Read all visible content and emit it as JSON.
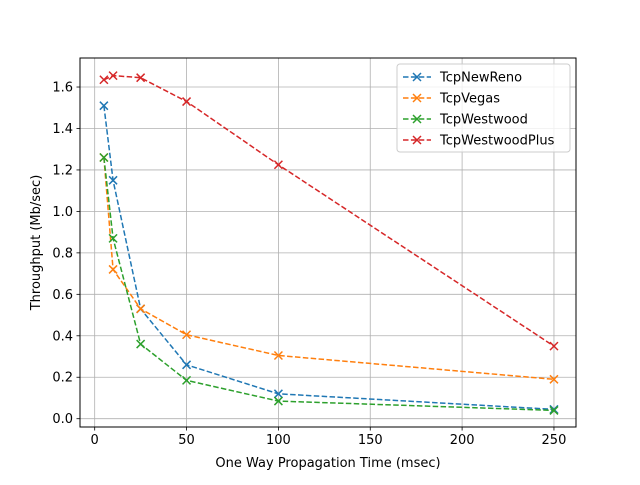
{
  "chart_data": {
    "type": "line",
    "title": "",
    "xlabel": "One Way Propagation Time (msec)",
    "ylabel": "Throughput (Mb/sec)",
    "xlim": [
      -8,
      262
    ],
    "ylim": [
      -0.04,
      1.74
    ],
    "xticks": [
      0,
      50,
      100,
      150,
      200,
      250
    ],
    "yticks": [
      0.0,
      0.2,
      0.4,
      0.6,
      0.8,
      1.0,
      1.2,
      1.4,
      1.6
    ],
    "grid": true,
    "legend_position": "top-right",
    "marker": "x",
    "line_style": "dashed",
    "series": [
      {
        "name": "TcpNewReno",
        "color": "#1f77b4",
        "x": [
          5,
          10,
          25,
          50,
          100,
          250
        ],
        "y": [
          1.51,
          1.15,
          0.53,
          0.26,
          0.12,
          0.045
        ]
      },
      {
        "name": "TcpVegas",
        "color": "#ff7f0e",
        "x": [
          5,
          10,
          25,
          50,
          100,
          250
        ],
        "y": [
          1.26,
          0.72,
          0.53,
          0.405,
          0.305,
          0.19
        ]
      },
      {
        "name": "TcpWestwood",
        "color": "#2ca02c",
        "x": [
          5,
          10,
          25,
          50,
          100,
          250
        ],
        "y": [
          1.26,
          0.87,
          0.36,
          0.185,
          0.085,
          0.04
        ]
      },
      {
        "name": "TcpWestwoodPlus",
        "color": "#d62728",
        "x": [
          5,
          10,
          25,
          50,
          100,
          250
        ],
        "y": [
          1.635,
          1.655,
          1.645,
          1.53,
          1.225,
          0.35
        ]
      }
    ]
  }
}
